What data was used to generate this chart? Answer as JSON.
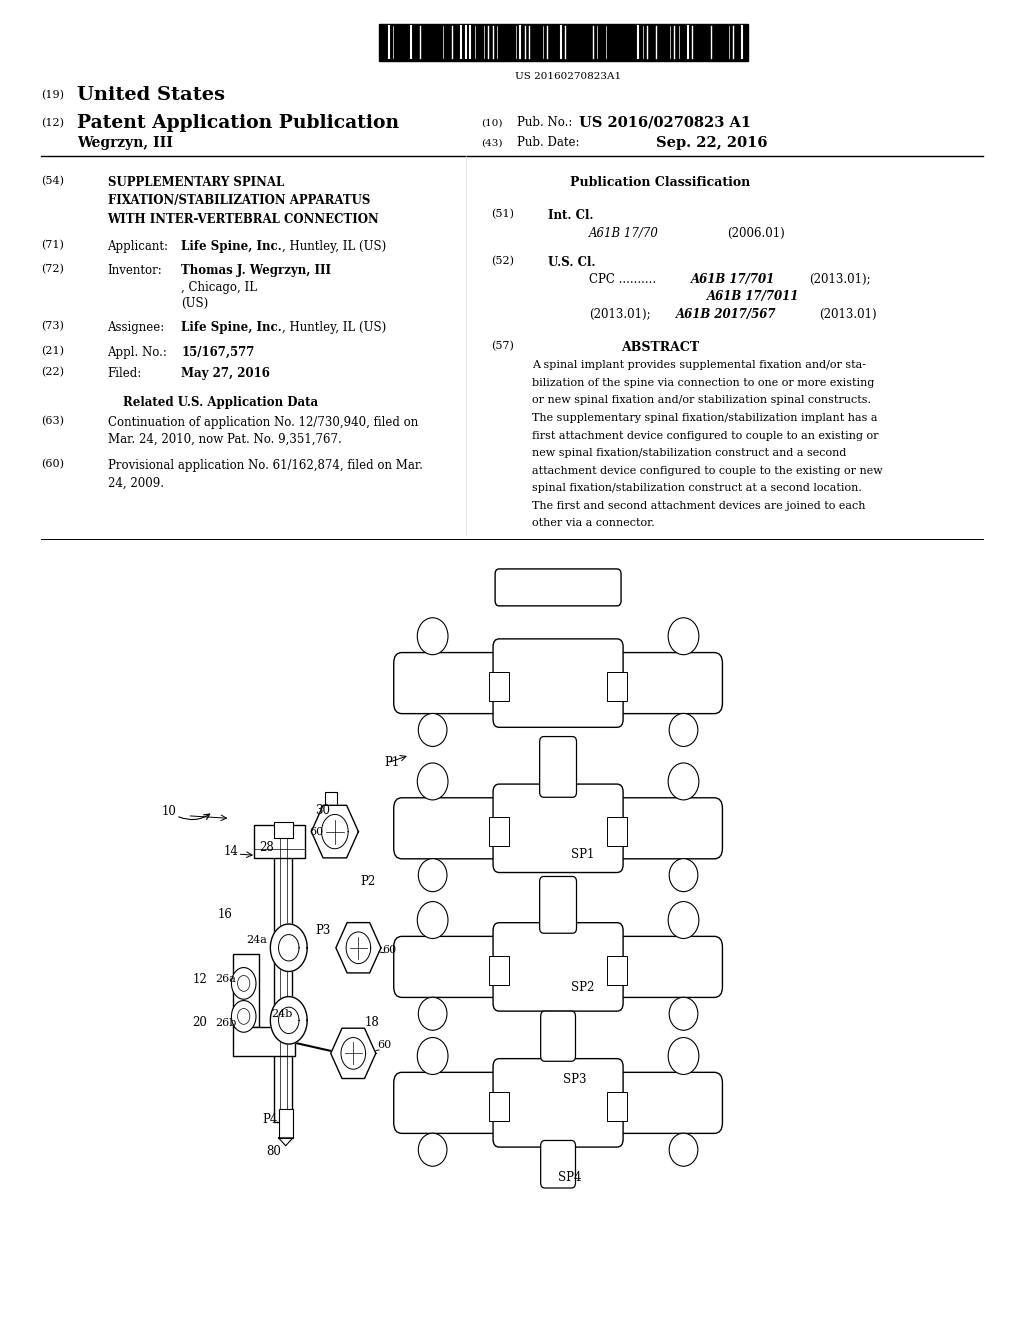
{
  "background_color": "#ffffff",
  "page_width": 10.24,
  "page_height": 13.2,
  "barcode_text": "US 20160270823A1",
  "header": {
    "number_19": "(19)",
    "us_text": "United States",
    "number_12": "(12)",
    "pub_text": "Patent Application Publication",
    "inventor_name": "Wegrzyn, III",
    "number_10": "(10)",
    "pub_no_label": "Pub. No.:",
    "pub_no_value": "US 2016/0270823 A1",
    "number_43": "(43)",
    "pub_date_label": "Pub. Date:",
    "pub_date_value": "Sep. 22, 2016"
  },
  "left_column": {
    "field_54_num": "(54)",
    "field_54_title_line1": "SUPPLEMENTARY SPINAL",
    "field_54_title_line2": "FIXATION/STABILIZATION APPARATUS",
    "field_54_title_line3": "WITH INTER-VERTEBRAL CONNECTION",
    "field_71_num": "(71)",
    "field_71_label": "Applicant:",
    "field_71_value": "Life Spine, Inc., Huntley, IL (US)",
    "field_72_num": "(72)",
    "field_72_label": "Inventor:",
    "field_72_value_bold": "Thomas J. Wegrzyn, III",
    "field_72_value_rest1": ", Chicago, IL",
    "field_72_value_rest2": "(US)",
    "field_73_num": "(73)",
    "field_73_label": "Assignee:",
    "field_73_value": "Life Spine, Inc., Huntley, IL (US)",
    "field_21_num": "(21)",
    "field_21_label": "Appl. No.:",
    "field_21_value": "15/167,577",
    "field_22_num": "(22)",
    "field_22_label": "Filed:",
    "field_22_value": "May 27, 2016",
    "related_title": "Related U.S. Application Data",
    "field_63_num": "(63)",
    "field_63_text_line1": "Continuation of application No. 12/730,940, filed on",
    "field_63_text_line2": "Mar. 24, 2010, now Pat. No. 9,351,767.",
    "field_60_num": "(60)",
    "field_60_text_line1": "Provisional application No. 61/162,874, filed on Mar.",
    "field_60_text_line2": "24, 2009."
  },
  "right_column": {
    "pub_class_title": "Publication Classification",
    "field_51_num": "(51)",
    "field_51_label": "Int. Cl.",
    "field_51_class": "A61B 17/70",
    "field_51_year": "(2006.01)",
    "field_52_num": "(52)",
    "field_52_label": "U.S. Cl.",
    "field_57_num": "(57)",
    "field_57_title": "ABSTRACT",
    "field_57_lines": [
      "A spinal implant provides supplemental fixation and/or sta-",
      "bilization of the spine via connection to one or more existing",
      "or new spinal fixation and/or stabilization spinal constructs.",
      "The supplementary spinal fixation/stabilization implant has a",
      "first attachment device configured to couple to an existing or",
      "new spinal fixation/stabilization construct and a second",
      "attachment device configured to couple to the existing or new",
      "spinal fixation/stabilization construct at a second location.",
      "The first and second attachment devices are joined to each",
      "other via a connector."
    ]
  }
}
